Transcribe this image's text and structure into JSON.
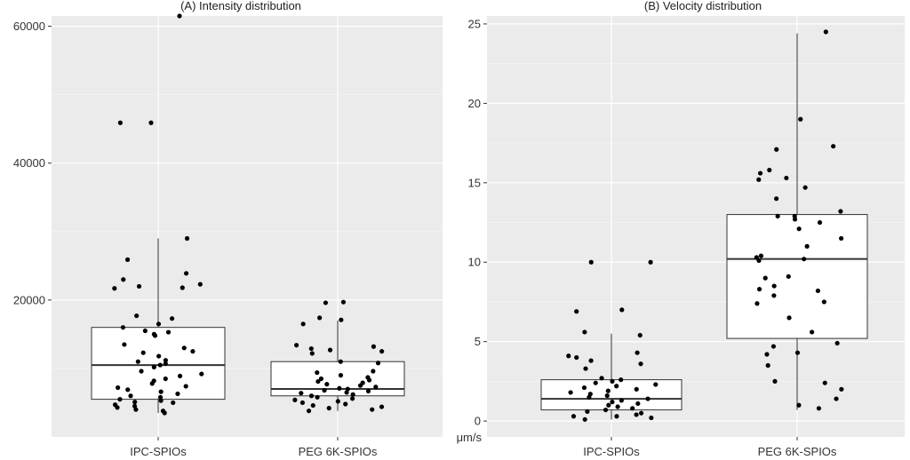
{
  "chart_data": [
    {
      "type": "box",
      "title": "(A) Intensity distribution",
      "xlabel": "",
      "ylabel": "",
      "ylim": [
        0,
        61500
      ],
      "yticks": [
        20000,
        40000,
        60000
      ],
      "yticklabels": [
        "20000",
        "40000",
        "60000"
      ],
      "categories": [
        "IPC-SPIOs",
        "PEG 6K-SPIOs"
      ],
      "boxes": [
        {
          "category": "IPC-SPIOs",
          "q1": 5500,
          "median": 10500,
          "q3": 16000,
          "whisker_low": 3500,
          "whisker_high": 29000
        },
        {
          "category": "PEG 6K-SPIOs",
          "q1": 6000,
          "median": 7000,
          "q3": 11000,
          "whisker_low": 3800,
          "whisker_high": 17000
        }
      ],
      "points": [
        {
          "category": "IPC-SPIOs",
          "values": [
            61500,
            45900,
            45900,
            29000,
            25900,
            23900,
            23000,
            22300,
            22000,
            21800,
            21700,
            17700,
            17300,
            16500,
            16000,
            15500,
            15300,
            15000,
            14800,
            13500,
            13000,
            12500,
            12300,
            11800,
            11200,
            11000,
            10700,
            10500,
            10200,
            9600,
            9200,
            8900,
            8500,
            8200,
            7800,
            7400,
            7200,
            6900,
            6600,
            6300,
            6000,
            5800,
            5500,
            5300,
            5100,
            5000,
            4700,
            4500,
            4300,
            4000,
            3800,
            3500
          ]
        },
        {
          "category": "PEG 6K-SPIOs",
          "values": [
            19700,
            19600,
            17400,
            17100,
            16500,
            13400,
            13200,
            12900,
            12700,
            12500,
            12200,
            11000,
            10800,
            9600,
            9400,
            9000,
            8700,
            8500,
            8300,
            8100,
            7900,
            7700,
            7500,
            7300,
            7100,
            7000,
            6800,
            6700,
            6500,
            6400,
            6200,
            6000,
            5800,
            5600,
            5400,
            5200,
            5000,
            4800,
            4600,
            4400,
            4200,
            4000,
            3800
          ]
        }
      ]
    },
    {
      "type": "box",
      "title": "(B) Velocity distribution",
      "xlabel": "",
      "ylabel": "μm/s",
      "ylim": [
        -1,
        25.5
      ],
      "yticks": [
        0,
        5,
        10,
        15,
        20,
        25
      ],
      "yticklabels": [
        "0",
        "5",
        "10",
        "15",
        "20",
        "25"
      ],
      "categories": [
        "IPC-SPIOs",
        "PEG 6K-SPIOs"
      ],
      "boxes": [
        {
          "category": "IPC-SPIOs",
          "q1": 0.7,
          "median": 1.4,
          "q3": 2.6,
          "whisker_low": 0.1,
          "whisker_high": 5.5
        },
        {
          "category": "PEG 6K-SPIOs",
          "q1": 5.2,
          "median": 10.2,
          "q3": 13.0,
          "whisker_low": 0.7,
          "whisker_high": 24.4
        }
      ],
      "points": [
        {
          "category": "IPC-SPIOs",
          "values": [
            10.0,
            10.0,
            7.0,
            6.9,
            5.6,
            5.4,
            4.3,
            4.1,
            4.0,
            3.8,
            3.6,
            3.3,
            2.7,
            2.6,
            2.5,
            2.4,
            2.3,
            2.2,
            2.1,
            2.0,
            1.9,
            1.8,
            1.7,
            1.6,
            1.5,
            1.4,
            1.3,
            1.2,
            1.1,
            1.0,
            0.9,
            0.8,
            0.7,
            0.6,
            0.5,
            0.4,
            0.3,
            0.3,
            0.2,
            0.1
          ]
        },
        {
          "category": "PEG 6K-SPIOs",
          "values": [
            24.5,
            19.0,
            17.3,
            17.1,
            15.8,
            15.6,
            15.3,
            15.2,
            14.7,
            14.0,
            13.2,
            12.9,
            12.9,
            12.7,
            12.5,
            12.1,
            11.5,
            11.0,
            10.4,
            10.3,
            10.2,
            10.1,
            9.1,
            9.0,
            8.5,
            8.3,
            8.2,
            7.9,
            7.5,
            7.4,
            6.5,
            5.6,
            4.9,
            4.7,
            4.3,
            4.2,
            3.5,
            2.5,
            2.4,
            2.0,
            1.4,
            1.0,
            0.8
          ]
        }
      ]
    }
  ]
}
